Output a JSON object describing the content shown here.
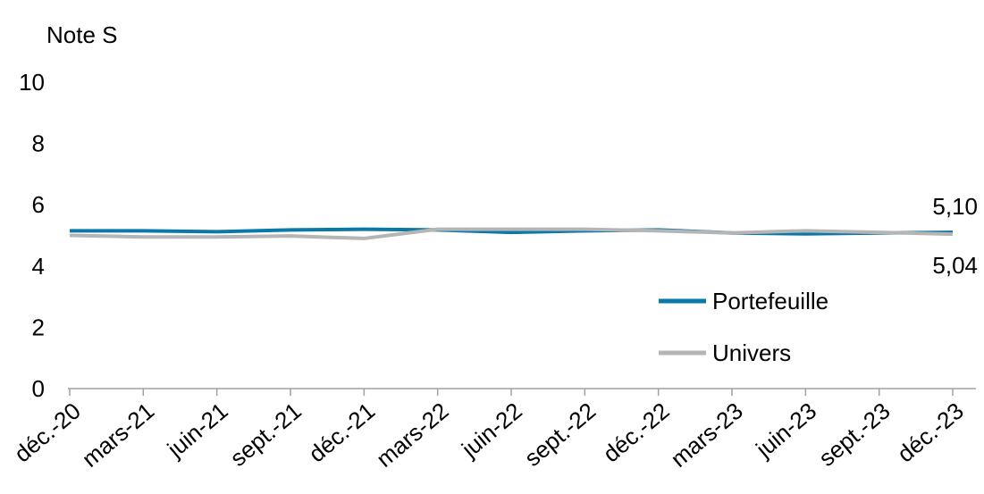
{
  "chart_data": {
    "type": "line",
    "y_label": "Note S",
    "categories": [
      "déc.-20",
      "mars-21",
      "juin-21",
      "sept.-21",
      "déc.-21",
      "mars-22",
      "juin-22",
      "sept.-22",
      "déc.-22",
      "mars-23",
      "juin-23",
      "sept.-23",
      "déc.-23"
    ],
    "series": [
      {
        "name": "Portefeuille",
        "color": "#0a78a8",
        "values": [
          5.15,
          5.15,
          5.12,
          5.18,
          5.2,
          5.18,
          5.1,
          5.15,
          5.18,
          5.08,
          5.05,
          5.08,
          5.1
        ],
        "value_labels": [
          null,
          null,
          null,
          null,
          null,
          null,
          null,
          null,
          null,
          null,
          null,
          null,
          "5,10"
        ]
      },
      {
        "name": "Univers",
        "color": "#b5b5b5",
        "values": [
          5.0,
          4.95,
          4.95,
          4.98,
          4.9,
          5.2,
          5.2,
          5.2,
          5.15,
          5.08,
          5.15,
          5.1,
          5.04
        ],
        "value_labels": [
          null,
          null,
          null,
          null,
          null,
          null,
          null,
          null,
          null,
          null,
          null,
          null,
          "5,04"
        ]
      }
    ],
    "ylim": [
      0,
      10
    ],
    "yticks": [
      0,
      2,
      4,
      6,
      8,
      10
    ],
    "grid": false,
    "legend": "lower right"
  }
}
